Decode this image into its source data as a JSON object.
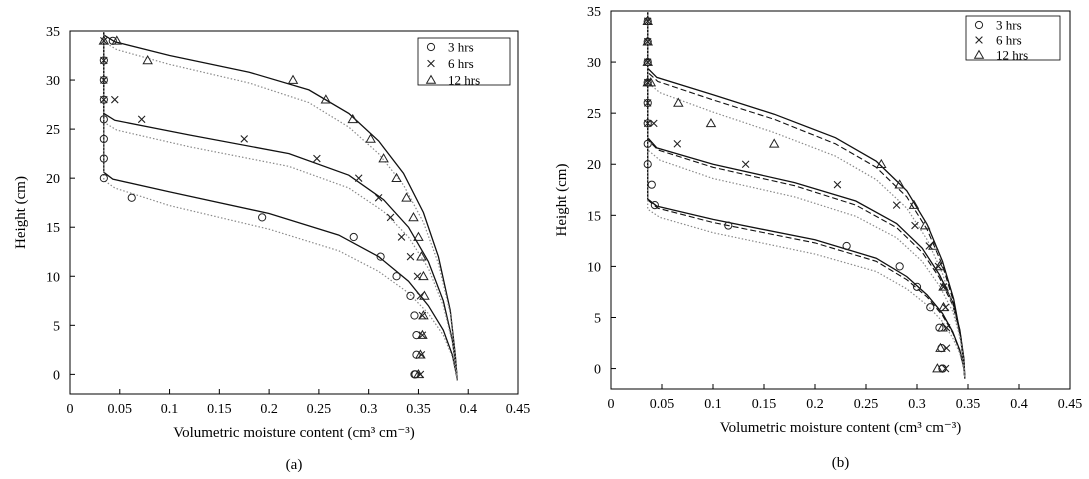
{
  "figure": {
    "panel_labels": [
      "(a)",
      "(b)"
    ]
  },
  "chart_data": [
    {
      "type": "scatter",
      "panel_label": "(a)",
      "xlabel": "Volumetric moisture content (cm³ cm⁻³)",
      "ylabel": "Height (cm)",
      "xlim": [
        0,
        0.45
      ],
      "ylim": [
        -2,
        35
      ],
      "xticks": [
        0,
        0.05,
        0.1,
        0.15,
        0.2,
        0.25,
        0.3,
        0.35,
        0.4,
        0.45
      ],
      "xtick_labels": [
        "0",
        "0.05",
        "0.1",
        "0.15",
        "0.2",
        "0.25",
        "0.3",
        "0.35",
        "0.4",
        "0.45"
      ],
      "yticks": [
        0,
        5,
        10,
        15,
        20,
        25,
        30,
        35
      ],
      "ytick_labels": [
        "0",
        "5",
        "10",
        "15",
        "20",
        "25",
        "30",
        "35"
      ],
      "grid": false,
      "legend": "top-right",
      "series": [
        {
          "name": "3 hrs",
          "marker": "circle",
          "x": [
            0.043,
            0.034,
            0.034,
            0.034,
            0.034,
            0.034,
            0.034,
            0.034,
            0.062,
            0.193,
            0.285,
            0.312,
            0.328,
            0.342,
            0.346,
            0.348,
            0.348,
            0.347,
            0.346
          ],
          "y": [
            34,
            32,
            30,
            28,
            26,
            24,
            22,
            20,
            18,
            16,
            14,
            12,
            10,
            8,
            6,
            4,
            2,
            0,
            0
          ]
        },
        {
          "name": "6 hrs",
          "marker": "x",
          "x": [
            0.034,
            0.034,
            0.034,
            0.034,
            0.045,
            0.072,
            0.175,
            0.248,
            0.29,
            0.31,
            0.322,
            0.333,
            0.342,
            0.349,
            0.352,
            0.354,
            0.354,
            0.353,
            0.352
          ],
          "y": [
            34,
            32,
            30,
            28,
            28,
            26,
            24,
            22,
            20,
            18,
            16,
            14,
            12,
            10,
            8,
            6,
            4,
            2,
            0
          ]
        },
        {
          "name": "12 hrs",
          "marker": "triangle",
          "x": [
            0.034,
            0.047,
            0.078,
            0.224,
            0.257,
            0.284,
            0.302,
            0.315,
            0.328,
            0.338,
            0.345,
            0.35,
            0.353,
            0.355,
            0.356,
            0.355,
            0.354,
            0.352,
            0.35
          ],
          "y": [
            34,
            34,
            32,
            30,
            28,
            26,
            24,
            22,
            20,
            18,
            16,
            14,
            12,
            10,
            8,
            6,
            4,
            2,
            0
          ]
        }
      ],
      "curves": [
        {
          "style": "solid",
          "x": [
            0.034,
            0.034,
            0.043,
            0.1,
            0.2,
            0.27,
            0.31,
            0.34,
            0.36,
            0.375,
            0.384,
            0.388,
            0.389
          ],
          "y": [
            35,
            20.6,
            19.9,
            18.6,
            16.4,
            14.2,
            12,
            9.5,
            7,
            4.5,
            2,
            0,
            -0.6
          ]
        },
        {
          "style": "solid",
          "x": [
            0.034,
            0.034,
            0.045,
            0.12,
            0.22,
            0.28,
            0.315,
            0.34,
            0.36,
            0.375,
            0.384,
            0.388,
            0.389
          ],
          "y": [
            35,
            26.6,
            25.9,
            24.4,
            22.5,
            20.3,
            17.8,
            15,
            11.5,
            7.5,
            3.5,
            0.5,
            -0.6
          ]
        },
        {
          "style": "solid",
          "x": [
            0.034,
            0.034,
            0.045,
            0.1,
            0.18,
            0.24,
            0.28,
            0.31,
            0.335,
            0.355,
            0.37,
            0.382,
            0.387,
            0.389
          ],
          "y": [
            35,
            34.6,
            33.9,
            32.5,
            30.8,
            29,
            26.6,
            23.8,
            20.5,
            16.5,
            12,
            6.5,
            2,
            -0.6
          ]
        },
        {
          "style": "dotted",
          "x": [
            0.034,
            0.034,
            0.045,
            0.1,
            0.2,
            0.27,
            0.31,
            0.34,
            0.36,
            0.375,
            0.384,
            0.388,
            0.389
          ],
          "y": [
            35,
            19.8,
            19,
            17.2,
            14.8,
            12.6,
            10.5,
            8.3,
            6.2,
            4,
            1.8,
            0,
            -0.6
          ]
        },
        {
          "style": "dotted",
          "x": [
            0.034,
            0.034,
            0.047,
            0.12,
            0.22,
            0.28,
            0.315,
            0.34,
            0.36,
            0.375,
            0.384,
            0.388,
            0.389
          ],
          "y": [
            35,
            25.7,
            24.9,
            23.2,
            21.2,
            19,
            16.6,
            14,
            10.8,
            7,
            3.3,
            0.4,
            -0.6
          ]
        },
        {
          "style": "dotted",
          "x": [
            0.034,
            0.034,
            0.047,
            0.1,
            0.18,
            0.24,
            0.28,
            0.31,
            0.335,
            0.355,
            0.37,
            0.382,
            0.387,
            0.389
          ],
          "y": [
            35,
            33.9,
            33.1,
            31.6,
            29.7,
            27.7,
            25.2,
            22.5,
            19.3,
            15.5,
            11.3,
            6.2,
            1.8,
            -0.6
          ]
        }
      ]
    },
    {
      "type": "scatter",
      "panel_label": "(b)",
      "xlabel": "Volumetric moisture content (cm³ cm⁻³)",
      "ylabel": "Height (cm)",
      "xlim": [
        0,
        0.45
      ],
      "ylim": [
        -2,
        35
      ],
      "xticks": [
        0,
        0.05,
        0.1,
        0.15,
        0.2,
        0.25,
        0.3,
        0.35,
        0.4,
        0.45
      ],
      "xtick_labels": [
        "0",
        "0.05",
        "0.1",
        "0.15",
        "0.2",
        "0.25",
        "0.3",
        "0.35",
        "0.4",
        "0.45"
      ],
      "yticks": [
        0,
        5,
        10,
        15,
        20,
        25,
        30,
        35
      ],
      "ytick_labels": [
        "0",
        "5",
        "10",
        "15",
        "20",
        "25",
        "30",
        "35"
      ],
      "grid": false,
      "legend": "top-right",
      "series": [
        {
          "name": "3 hrs",
          "marker": "circle",
          "x": [
            0.036,
            0.036,
            0.036,
            0.036,
            0.036,
            0.036,
            0.036,
            0.036,
            0.04,
            0.043,
            0.115,
            0.231,
            0.283,
            0.3,
            0.313,
            0.322,
            0.324,
            0.325,
            0.325,
            0.325
          ],
          "y": [
            34,
            32,
            30,
            28,
            26,
            24,
            22,
            20,
            18,
            16,
            14,
            12,
            10,
            8,
            6,
            4,
            2,
            0,
            0,
            0
          ]
        },
        {
          "name": "6 hrs",
          "marker": "x",
          "x": [
            0.036,
            0.036,
            0.036,
            0.036,
            0.036,
            0.036,
            0.042,
            0.065,
            0.132,
            0.222,
            0.28,
            0.298,
            0.312,
            0.321,
            0.326,
            0.328,
            0.329,
            0.329,
            0.328
          ],
          "y": [
            34,
            32,
            30,
            28,
            26,
            24,
            24,
            22,
            20,
            18,
            16,
            14,
            12,
            10,
            8,
            6,
            4,
            2,
            0
          ]
        },
        {
          "name": "12 hrs",
          "marker": "triangle",
          "x": [
            0.036,
            0.036,
            0.036,
            0.036,
            0.039,
            0.066,
            0.098,
            0.16,
            0.265,
            0.283,
            0.297,
            0.308,
            0.316,
            0.322,
            0.326,
            0.326,
            0.325,
            0.323,
            0.32
          ],
          "y": [
            34,
            32,
            30,
            28,
            28,
            26,
            24,
            22,
            20,
            18,
            16,
            14,
            12,
            10,
            8,
            6,
            4,
            2,
            0
          ]
        }
      ],
      "curves": [
        {
          "style": "solid",
          "x": [
            0.036,
            0.036,
            0.045,
            0.1,
            0.2,
            0.26,
            0.29,
            0.31,
            0.325,
            0.335,
            0.342,
            0.346,
            0.347
          ],
          "y": [
            35,
            16.6,
            15.9,
            14.6,
            12.6,
            10.8,
            9,
            7.2,
            5.4,
            3.6,
            1.8,
            0,
            -1
          ]
        },
        {
          "style": "solid",
          "x": [
            0.036,
            0.036,
            0.045,
            0.1,
            0.18,
            0.24,
            0.28,
            0.305,
            0.322,
            0.335,
            0.342,
            0.346,
            0.347
          ],
          "y": [
            35,
            22.6,
            21.6,
            20,
            18.2,
            16.4,
            14.2,
            11.8,
            9.2,
            6.5,
            3.8,
            1,
            -1
          ]
        },
        {
          "style": "solid",
          "x": [
            0.036,
            0.036,
            0.045,
            0.1,
            0.16,
            0.22,
            0.26,
            0.29,
            0.31,
            0.325,
            0.336,
            0.343,
            0.347
          ],
          "y": [
            35,
            29.4,
            28.5,
            26.8,
            24.9,
            22.6,
            20.3,
            17.4,
            14.1,
            10.5,
            6.8,
            3,
            -1
          ]
        },
        {
          "style": "dashed",
          "x": [
            0.036,
            0.036,
            0.046,
            0.1,
            0.2,
            0.26,
            0.29,
            0.31,
            0.325,
            0.335,
            0.342,
            0.346,
            0.347
          ],
          "y": [
            35,
            16.5,
            15.7,
            14.3,
            12.3,
            10.5,
            8.7,
            7,
            5.2,
            3.5,
            1.7,
            0,
            -1
          ]
        },
        {
          "style": "dashed",
          "x": [
            0.036,
            0.036,
            0.046,
            0.1,
            0.18,
            0.24,
            0.28,
            0.305,
            0.322,
            0.335,
            0.342,
            0.346,
            0.347
          ],
          "y": [
            35,
            22.4,
            21.4,
            19.7,
            17.9,
            16,
            13.8,
            11.4,
            8.9,
            6.2,
            3.6,
            0.9,
            -1
          ]
        },
        {
          "style": "dashed",
          "x": [
            0.036,
            0.036,
            0.046,
            0.1,
            0.16,
            0.22,
            0.26,
            0.29,
            0.31,
            0.325,
            0.336,
            0.343,
            0.347
          ],
          "y": [
            35,
            29,
            28.1,
            26.3,
            24.4,
            22,
            19.7,
            16.8,
            13.6,
            10.1,
            6.5,
            2.8,
            -1
          ]
        },
        {
          "style": "dotted",
          "x": [
            0.036,
            0.036,
            0.048,
            0.1,
            0.2,
            0.26,
            0.29,
            0.31,
            0.325,
            0.335,
            0.342,
            0.346,
            0.347
          ],
          "y": [
            35,
            15.6,
            14.8,
            13.3,
            11.2,
            9.5,
            7.8,
            6.2,
            4.6,
            3,
            1.5,
            0,
            -1
          ]
        },
        {
          "style": "dotted",
          "x": [
            0.036,
            0.036,
            0.048,
            0.1,
            0.18,
            0.24,
            0.28,
            0.305,
            0.322,
            0.335,
            0.342,
            0.346,
            0.347
          ],
          "y": [
            35,
            21.4,
            20.4,
            18.6,
            16.8,
            14.9,
            12.8,
            10.5,
            8.1,
            5.6,
            3.2,
            0.8,
            -1
          ]
        },
        {
          "style": "dotted",
          "x": [
            0.036,
            0.036,
            0.048,
            0.1,
            0.16,
            0.22,
            0.26,
            0.29,
            0.31,
            0.325,
            0.336,
            0.343,
            0.347
          ],
          "y": [
            35,
            28,
            27,
            25.1,
            23.1,
            20.8,
            18.5,
            15.7,
            12.6,
            9.3,
            5.9,
            2.5,
            -1
          ]
        }
      ]
    }
  ]
}
